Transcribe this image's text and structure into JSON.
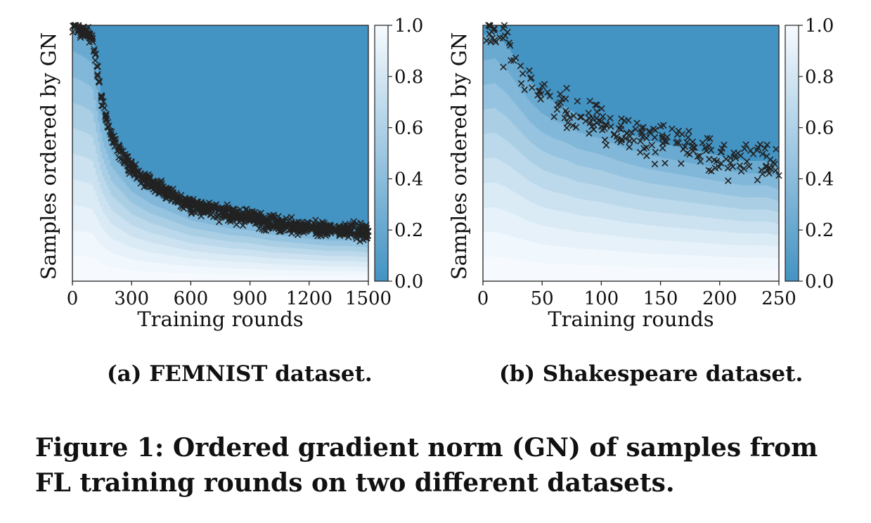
{
  "chart_data": [
    {
      "type": "heatmap",
      "subtitle": "(a) FEMNIST dataset.",
      "xlabel": "Training rounds",
      "ylabel": "Samples ordered by GN",
      "xlim": [
        0,
        1500
      ],
      "xticks": [
        0,
        300,
        600,
        900,
        1200,
        1500
      ],
      "colorbar": {
        "range": [
          0.0,
          1.0
        ],
        "ticks": [
          "0.0",
          "0.2",
          "0.4",
          "0.6",
          "0.8",
          "1.0"
        ]
      },
      "colormap": {
        "low": "#4393c3",
        "high": "#f7fbff"
      },
      "marker": "x",
      "marker_color": "#222222",
      "series": [
        {
          "x": [
            0,
            50,
            100,
            150,
            200,
            300,
            400,
            500,
            600,
            700,
            800,
            900,
            1000,
            1100,
            1200,
            1300,
            1400,
            1500
          ],
          "y": [
            1.0,
            0.98,
            0.95,
            0.7,
            0.56,
            0.44,
            0.38,
            0.34,
            0.3,
            0.28,
            0.26,
            0.25,
            0.23,
            0.22,
            0.21,
            0.2,
            0.2,
            0.19
          ]
        }
      ]
    },
    {
      "type": "heatmap",
      "subtitle": "(b) Shakespeare dataset.",
      "xlabel": "Training rounds",
      "ylabel": "Samples ordered by GN",
      "xlim": [
        0,
        250
      ],
      "xticks": [
        0,
        50,
        100,
        150,
        200,
        250
      ],
      "colorbar": {
        "range": [
          0.0,
          1.0
        ],
        "ticks": [
          "0.0",
          "0.2",
          "0.4",
          "0.6",
          "0.8",
          "1.0"
        ]
      },
      "colormap": {
        "low": "#4393c3",
        "high": "#f7fbff"
      },
      "marker": "x",
      "marker_color": "#222222",
      "series": [
        {
          "x": [
            0,
            10,
            20,
            30,
            40,
            50,
            60,
            70,
            80,
            100,
            120,
            140,
            160,
            180,
            200,
            220,
            240,
            250
          ],
          "y": [
            0.96,
            0.97,
            0.92,
            0.85,
            0.78,
            0.73,
            0.7,
            0.68,
            0.65,
            0.62,
            0.58,
            0.55,
            0.53,
            0.51,
            0.49,
            0.47,
            0.47,
            0.45
          ]
        }
      ]
    }
  ],
  "figure_caption": "Figure 1: Ordered gradient norm (GN) of samples from FL training rounds on two different datasets."
}
